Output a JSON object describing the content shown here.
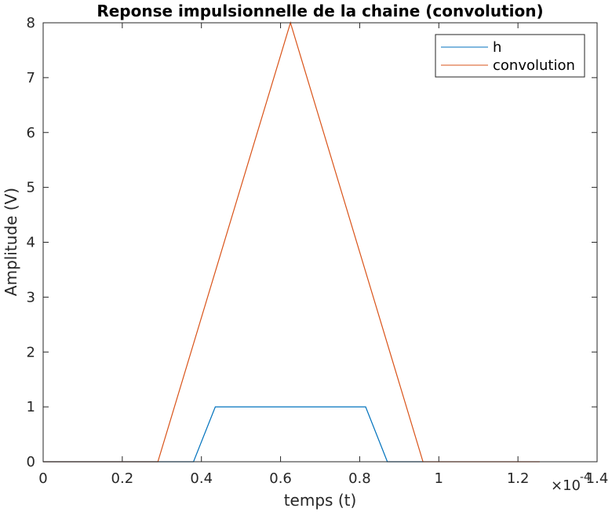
{
  "chart_data": {
    "type": "line",
    "title": "Reponse impulsionnelle de la chaine (convolution)",
    "xlabel": "temps (t)",
    "ylabel": "Amplitude (V)",
    "x_exponent_label": "×10",
    "x_exponent_power": "-4",
    "xlim": [
      0,
      1.4
    ],
    "ylim": [
      0,
      8
    ],
    "xticks": [
      "0",
      "0.2",
      "0.4",
      "0.6",
      "0.8",
      "1",
      "1.2",
      "1.4"
    ],
    "yticks": [
      "0",
      "1",
      "2",
      "3",
      "4",
      "5",
      "6",
      "7",
      "8"
    ],
    "grid": false,
    "legend_position": "top-right",
    "series": [
      {
        "name": "h",
        "color": "#0072BD",
        "x": [
          0,
          0.38,
          0.435,
          0.815,
          0.87,
          0.96
        ],
        "y": [
          0,
          0,
          1,
          1,
          0,
          0
        ]
      },
      {
        "name": "convolution",
        "color": "#D95319",
        "x": [
          0,
          0.29,
          0.625,
          0.96,
          1.255
        ],
        "y": [
          0,
          0,
          8,
          0,
          0
        ]
      }
    ]
  }
}
